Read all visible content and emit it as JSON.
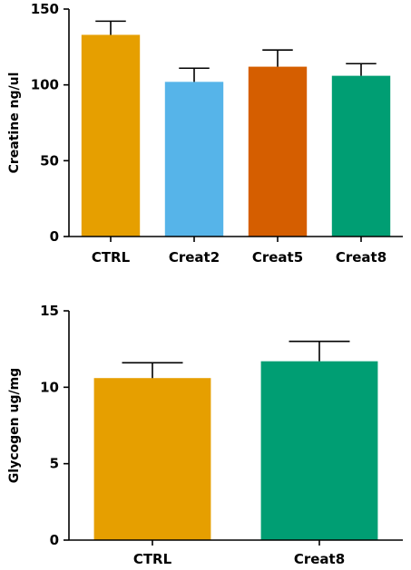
{
  "chart_data": [
    {
      "type": "bar",
      "title": "",
      "xlabel": "",
      "ylabel": "Creatine ng/ul",
      "ylim": [
        0,
        150
      ],
      "yticks": [
        0,
        50,
        100,
        150
      ],
      "categories": [
        "CTRL",
        "Creat2",
        "Creat5",
        "Creat8"
      ],
      "values": [
        133,
        102,
        112,
        106
      ],
      "error": [
        9,
        9,
        11,
        8
      ],
      "colors": [
        "#E69F00",
        "#56B4E9",
        "#D55E00",
        "#009E73"
      ],
      "grid": false,
      "legend": "none"
    },
    {
      "type": "bar",
      "title": "",
      "xlabel": "",
      "ylabel": "Glycogen ug/mg",
      "ylim": [
        0,
        15
      ],
      "yticks": [
        0,
        5,
        10,
        15
      ],
      "categories": [
        "CTRL",
        "Creat8"
      ],
      "values": [
        10.6,
        11.7
      ],
      "error": [
        1.0,
        1.3
      ],
      "colors": [
        "#E69F00",
        "#009E73"
      ],
      "grid": false,
      "legend": "none"
    }
  ]
}
